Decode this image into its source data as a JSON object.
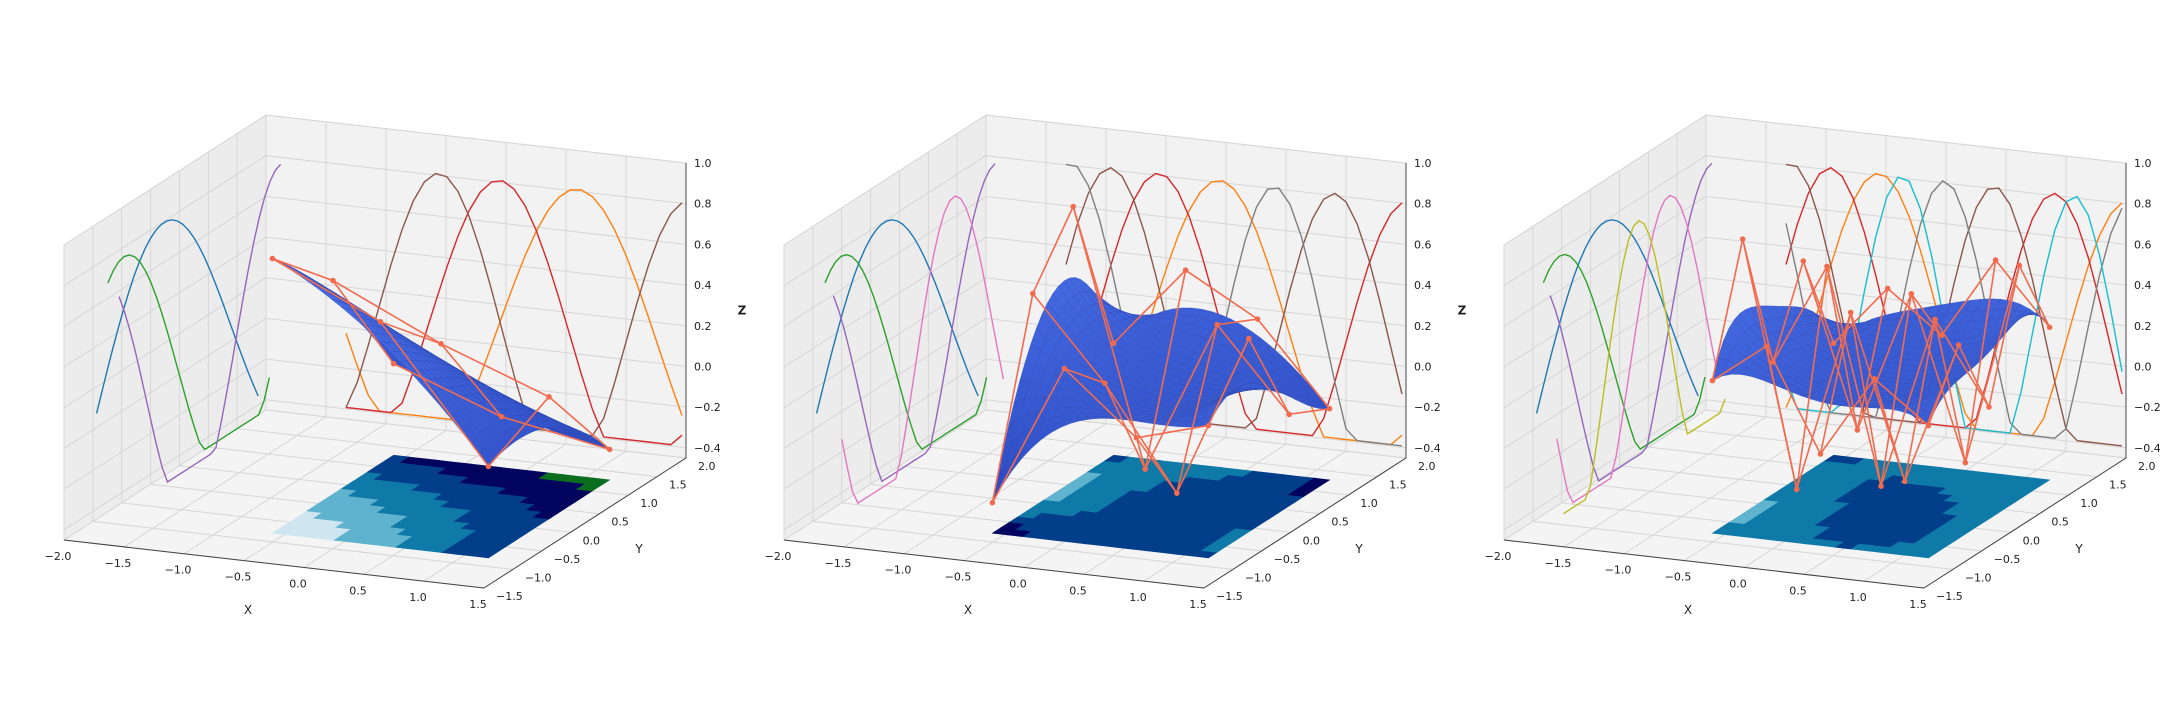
{
  "figure": {
    "panels": 3,
    "pane_color": "#f2f2f2",
    "grid_color": "#d6d6d6",
    "surface_color": "#3f5fd8",
    "surface_edge_color": "#2e47b0",
    "control_color": "#f26b4f"
  },
  "chart_data": [
    {
      "type": "surface3d",
      "title": "",
      "xlabel": "X",
      "ylabel": "Y",
      "zlabel": "Z",
      "xlim": [
        -2.0,
        1.5
      ],
      "ylim": [
        -1.5,
        2.0
      ],
      "zlim": [
        -0.45,
        1.0
      ],
      "xticks": [
        "−2.0",
        "−1.5",
        "−1.0",
        "−0.5",
        "0.0",
        "0.5",
        "1.0",
        "1.5"
      ],
      "yticks": [
        "−1.5",
        "−1.0",
        "−0.5",
        "0.0",
        "0.5",
        "1.0",
        "1.5",
        "2.0"
      ],
      "zticks": [
        "−0.4",
        "−0.2",
        "0.0",
        "0.2",
        "0.4",
        "0.6",
        "0.8",
        "1.0"
      ],
      "grid": true,
      "surface": {
        "degree": 2,
        "control_grid": [
          [
            0.9,
            0.6,
            0.0
          ],
          [
            0.65,
            0.35,
            -0.2
          ],
          [
            0.0,
            0.15,
            -0.3
          ]
        ]
      },
      "contour_levels": [
        "#cfe6f0",
        "#5fb3cf",
        "#0f7aa8",
        "#023e8a",
        "#03045e",
        "#0b6e1f"
      ],
      "side_curves": [
        {
          "color": "#1f77b4"
        },
        {
          "color": "#2ca02c"
        },
        {
          "color": "#9467bd"
        },
        {
          "color": "#ff7f0e"
        },
        {
          "color": "#d62728"
        },
        {
          "color": "#8c564b"
        }
      ]
    },
    {
      "type": "surface3d",
      "title": "",
      "xlabel": "X",
      "ylabel": "Y",
      "zlabel": "Z",
      "xlim": [
        -2.0,
        1.5
      ],
      "ylim": [
        -1.5,
        2.0
      ],
      "zlim": [
        -0.45,
        1.0
      ],
      "xticks": [
        "−2.0",
        "−1.5",
        "−1.0",
        "−0.5",
        "0.0",
        "0.5",
        "1.0",
        "1.5"
      ],
      "yticks": [
        "−1.5",
        "−1.0",
        "−0.5",
        "0.0",
        "0.5",
        "1.0",
        "1.5",
        "2.0"
      ],
      "zticks": [
        "−0.4",
        "−0.2",
        "0.0",
        "0.2",
        "0.4",
        "0.6",
        "0.8",
        "1.0"
      ],
      "grid": true,
      "surface": {
        "degree": 3,
        "control_grid": [
          [
            -0.3,
            0.6,
            0.9,
            0.1
          ],
          [
            0.4,
            0.2,
            -0.35,
            0.5
          ],
          [
            0.1,
            -0.3,
            0.4,
            0.3
          ],
          [
            0.2,
            0.5,
            0.0,
            -0.1
          ]
        ]
      },
      "contour_levels": [
        "#cfe6f0",
        "#5fb3cf",
        "#0f7aa8",
        "#023e8a",
        "#03045e",
        "#0b6e1f"
      ],
      "side_curves": [
        {
          "color": "#1f77b4"
        },
        {
          "color": "#2ca02c"
        },
        {
          "color": "#9467bd"
        },
        {
          "color": "#e377c2"
        },
        {
          "color": "#ff7f0e"
        },
        {
          "color": "#d62728"
        },
        {
          "color": "#8c564b"
        },
        {
          "color": "#7f7f7f"
        }
      ]
    },
    {
      "type": "surface3d",
      "title": "",
      "xlabel": "X",
      "ylabel": "Y",
      "zlabel": "Z",
      "xlim": [
        -2.0,
        1.5
      ],
      "ylim": [
        -1.5,
        2.0
      ],
      "zlim": [
        -0.45,
        1.0
      ],
      "xticks": [
        "−2.0",
        "−1.5",
        "−1.0",
        "−0.5",
        "0.0",
        "0.5",
        "1.0",
        "1.5"
      ],
      "yticks": [
        "−1.5",
        "−1.0",
        "−0.5",
        "0.0",
        "0.5",
        "1.0",
        "1.5",
        "2.0"
      ],
      "zticks": [
        "−0.4",
        "−0.2",
        "0.0",
        "0.2",
        "0.4",
        "0.6",
        "0.8",
        "1.0"
      ],
      "grid": true,
      "surface": {
        "degree": 4,
        "control_grid": [
          [
            0.3,
            0.9,
            0.2,
            0.6,
            0.1
          ],
          [
            0.5,
            -0.3,
            0.7,
            -0.2,
            0.4
          ],
          [
            0.0,
            0.6,
            -0.35,
            0.5,
            0.2
          ],
          [
            0.4,
            -0.2,
            0.5,
            -0.3,
            0.6
          ],
          [
            0.2,
            0.5,
            0.1,
            0.7,
            0.3
          ]
        ]
      },
      "contour_levels": [
        "#cfe6f0",
        "#5fb3cf",
        "#0f7aa8",
        "#023e8a",
        "#03045e",
        "#0b6e1f"
      ],
      "side_curves": [
        {
          "color": "#1f77b4"
        },
        {
          "color": "#2ca02c"
        },
        {
          "color": "#9467bd"
        },
        {
          "color": "#e377c2"
        },
        {
          "color": "#bcbd22"
        },
        {
          "color": "#ff7f0e"
        },
        {
          "color": "#d62728"
        },
        {
          "color": "#8c564b"
        },
        {
          "color": "#7f7f7f"
        },
        {
          "color": "#17becf"
        }
      ]
    }
  ]
}
